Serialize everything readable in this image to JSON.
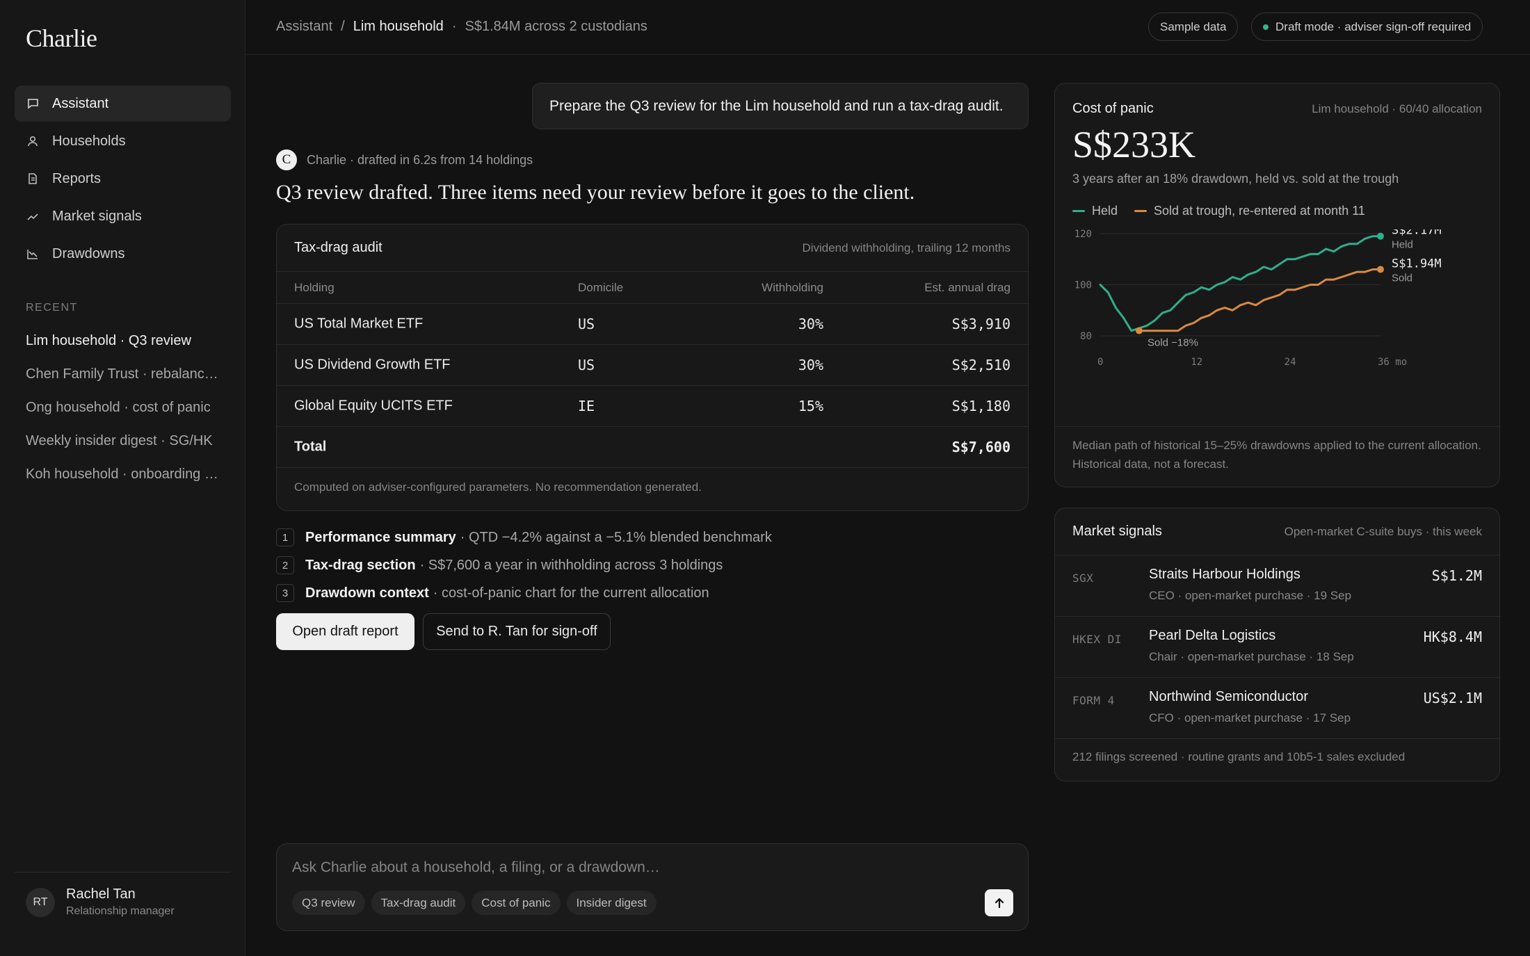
{
  "sidebar": {
    "brand": "Charlie",
    "nav": [
      {
        "label": "Assistant",
        "icon": "chat-icon"
      },
      {
        "label": "Households",
        "icon": "person-icon"
      },
      {
        "label": "Reports",
        "icon": "document-icon"
      },
      {
        "label": "Market signals",
        "icon": "trend-up-icon"
      },
      {
        "label": "Drawdowns",
        "icon": "trend-down-icon"
      }
    ],
    "recent_heading": "RECENT",
    "recent": [
      "Lim household · Q3 review",
      "Chen Family Trust · rebalance…",
      "Ong household · cost of panic",
      "Weekly insider digest · SG/HK",
      "Koh household · onboarding …"
    ],
    "user": {
      "initials": "RT",
      "name": "Rachel Tan",
      "role": "Relationship manager"
    }
  },
  "topbar": {
    "crumb_root": "Assistant",
    "crumb_sep": "/",
    "crumb_current": "Lim household",
    "crumb_dot": "·",
    "crumb_detail": "S$1.84M across 2 custodians",
    "sample_pill": "Sample data",
    "draft_pill": "Draft mode · adviser sign-off required",
    "accent_green": "#35b48c"
  },
  "conversation": {
    "user_message": "Prepare the Q3 review for the Lim household and run a tax-drag audit.",
    "assistant_logo": "C",
    "assistant_meta": "Charlie · drafted in 6.2s from 14 holdings",
    "headline": "Q3 review drafted. Three items need your review before it goes to the client."
  },
  "tax_audit": {
    "title": "Tax-drag audit",
    "subtitle": "Dividend withholding, trailing 12 months",
    "columns": [
      "Holding",
      "Domicile",
      "Withholding",
      "Est. annual drag"
    ],
    "rows": [
      {
        "holding": "US Total Market ETF",
        "domicile": "US",
        "withholding": "30%",
        "drag": "S$3,910"
      },
      {
        "holding": "US Dividend Growth ETF",
        "domicile": "US",
        "withholding": "30%",
        "drag": "S$2,510"
      },
      {
        "holding": "Global Equity UCITS ETF",
        "domicile": "IE",
        "withholding": "15%",
        "drag": "S$1,180"
      }
    ],
    "total_label": "Total",
    "total_value": "S$7,600",
    "footnote": "Computed on adviser-configured parameters. No recommendation generated."
  },
  "review_items": [
    {
      "n": "1",
      "title": "Performance summary",
      "detail": "· QTD −4.2% against a −5.1% blended benchmark"
    },
    {
      "n": "2",
      "title": "Tax-drag section",
      "detail": "· S$7,600 a year in withholding across 3 holdings"
    },
    {
      "n": "3",
      "title": "Drawdown context",
      "detail": "· cost-of-panic chart for the current allocation"
    }
  ],
  "actions": {
    "open_draft": "Open draft report",
    "send_signoff": "Send to R. Tan for sign-off"
  },
  "composer": {
    "placeholder": "Ask Charlie about a household, a filing, or a drawdown…",
    "chips": [
      "Q3 review",
      "Tax-drag audit",
      "Cost of panic",
      "Insider digest"
    ],
    "send_icon": "arrow-up-icon"
  },
  "cost_of_panic": {
    "title": "Cost of panic",
    "context": "Lim household · 60/40 allocation",
    "value": "S$233K",
    "subtitle": "3 years after an 18% drawdown, held vs. sold at the trough",
    "footnote": "Median path of historical 15–25% drawdowns applied to the current allocation. Historical data, not a forecast."
  },
  "chart_data": {
    "type": "line",
    "series": [
      {
        "name": "Held",
        "color": "#2fae8a",
        "end_label": "S$2.17M",
        "end_sublabel": "Held",
        "x": [
          0,
          1,
          2,
          3,
          4,
          5,
          6,
          7,
          8,
          9,
          10,
          11,
          12,
          13,
          14,
          15,
          16,
          17,
          18,
          19,
          20,
          21,
          22,
          23,
          24,
          25,
          26,
          27,
          28,
          29,
          30,
          31,
          32,
          33,
          34,
          35,
          36
        ],
        "y": [
          100,
          97,
          91,
          87,
          82,
          83,
          84,
          86,
          89,
          90,
          93,
          96,
          97,
          99,
          98,
          100,
          101,
          103,
          102,
          104,
          105,
          107,
          106,
          108,
          110,
          110,
          111,
          112,
          112,
          114,
          113,
          115,
          116,
          116,
          118,
          119,
          119
        ]
      },
      {
        "name": "Sold at trough, re-entered at month 11",
        "color": "#d98a3f",
        "end_label": "S$1.94M",
        "end_sublabel": "Sold",
        "x": [
          5,
          6,
          7,
          8,
          9,
          10,
          11,
          12,
          13,
          14,
          15,
          16,
          17,
          18,
          19,
          20,
          21,
          22,
          23,
          24,
          25,
          26,
          27,
          28,
          29,
          30,
          31,
          32,
          33,
          34,
          35,
          36
        ],
        "y": [
          82,
          82,
          82,
          82,
          82,
          82,
          84,
          85,
          87,
          88,
          90,
          91,
          90,
          92,
          93,
          92,
          94,
          95,
          96,
          98,
          98,
          99,
          100,
          100,
          102,
          102,
          103,
          104,
          105,
          105,
          106,
          106
        ]
      }
    ],
    "annotation": "Sold −18%",
    "annotation_x": 5,
    "annotation_y": 82,
    "x_ticks": [
      "0",
      "12",
      "24",
      "36"
    ],
    "x_unit": "mo",
    "y_ticks": [
      "120",
      "100",
      "80"
    ],
    "xlim": [
      0,
      36
    ],
    "ylim": [
      80,
      120
    ],
    "grid": true
  },
  "market_signals": {
    "title": "Market signals",
    "subtitle": "Open-market C-suite buys · this week",
    "rows": [
      {
        "source": "SGX",
        "company": "Straits Harbour Holdings",
        "detail": "CEO · open-market purchase · 19 Sep",
        "amount": "S$1.2M"
      },
      {
        "source": "HKEX DI",
        "company": "Pearl Delta Logistics",
        "detail": "Chair · open-market purchase · 18 Sep",
        "amount": "HK$8.4M"
      },
      {
        "source": "FORM 4",
        "company": "Northwind Semiconductor",
        "detail": "CFO · open-market purchase · 17 Sep",
        "amount": "US$2.1M"
      }
    ],
    "footnote": "212 filings screened · routine grants and 10b5-1 sales excluded"
  }
}
